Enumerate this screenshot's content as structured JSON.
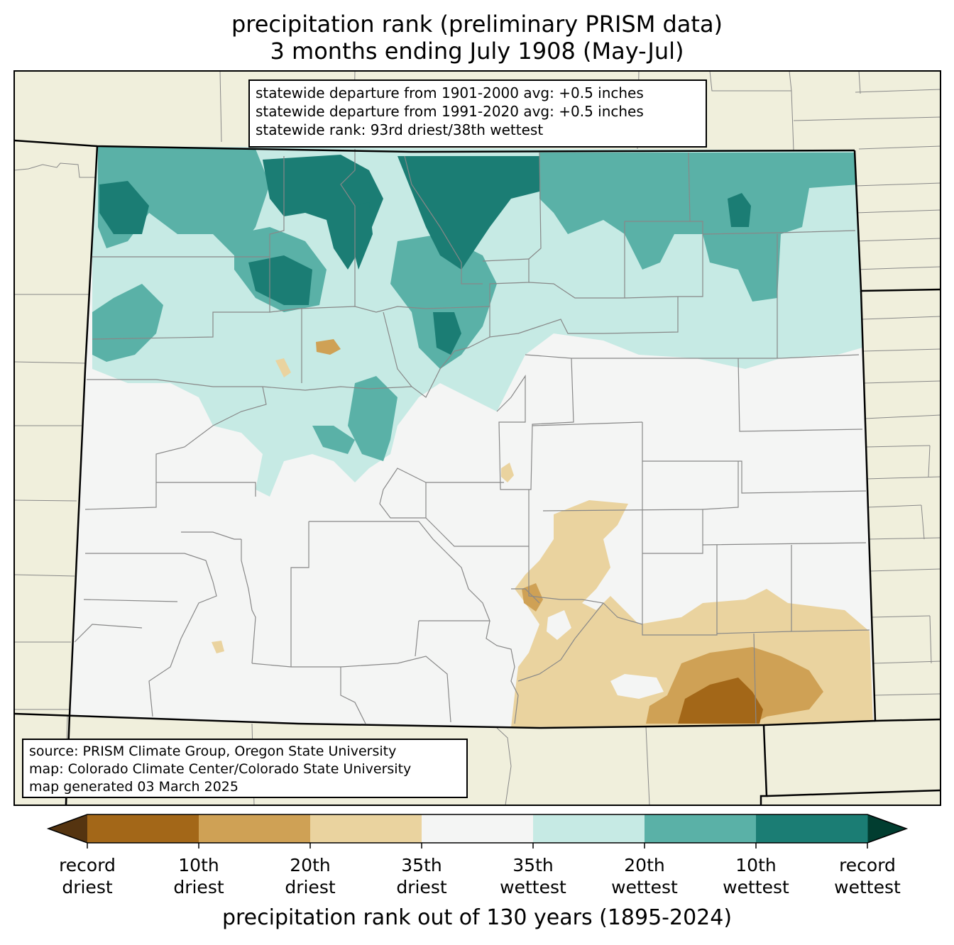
{
  "title": {
    "line1": "precipitation rank (preliminary PRISM data)",
    "line2": "3 months ending July 1908 (May-Jul)"
  },
  "stats": {
    "line1": "statewide departure from 1901-2000 avg: +0.5 inches",
    "line2": "statewide departure from 1991-2020 avg: +0.5 inches",
    "line3": "statewide rank: 93rd driest/38th wettest"
  },
  "source": {
    "line1": "source: PRISM Climate Group, Oregon State University",
    "line2": "map: Colorado Climate Center/Colorado State University",
    "line3": "map generated 03 March 2025"
  },
  "colorbar": {
    "label": "precipitation rank out of 130 years (1895-2024)",
    "colors": [
      "#a36718",
      "#cfa155",
      "#ead39f",
      "#f4f5f4",
      "#c6eae4",
      "#5ab1a7",
      "#1b7d74"
    ],
    "extend_low_color": "#553410",
    "extend_high_color": "#013d30",
    "ticks": [
      {
        "l1": "record",
        "l2": "driest"
      },
      {
        "l1": "10th",
        "l2": "driest"
      },
      {
        "l1": "20th",
        "l2": "driest"
      },
      {
        "l1": "35th",
        "l2": "driest"
      },
      {
        "l1": "35th",
        "l2": "wettest"
      },
      {
        "l1": "20th",
        "l2": "wettest"
      },
      {
        "l1": "10th",
        "l2": "wettest"
      },
      {
        "l1": "record",
        "l2": "wettest"
      }
    ]
  },
  "map_colors": {
    "background_land": "#f0efdc",
    "county_lines": "#888888",
    "state_lines": "#000000"
  }
}
